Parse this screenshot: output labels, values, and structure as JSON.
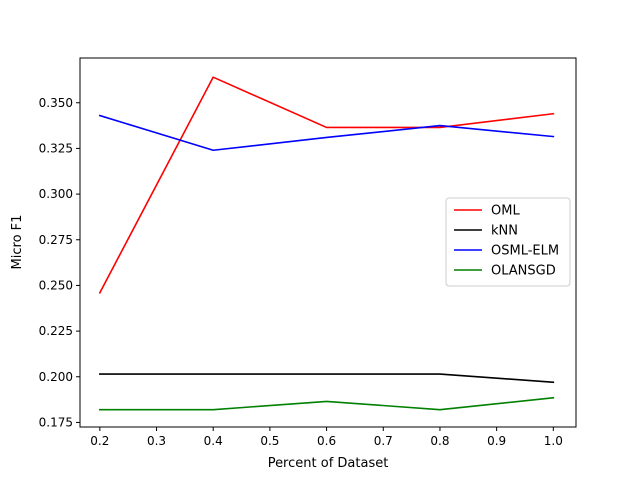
{
  "chart_data": {
    "type": "line",
    "title": "",
    "xlabel": "Percent of Dataset",
    "ylabel": "Micro F1",
    "x": [
      0.2,
      0.4,
      0.6,
      0.8,
      1.0
    ],
    "xlim": [
      0.165,
      1.04
    ],
    "ylim": [
      0.1725,
      0.3745
    ],
    "xticks": [
      0.2,
      0.3,
      0.4,
      0.5,
      0.6,
      0.7,
      0.8,
      0.9,
      1.0
    ],
    "xtick_labels": [
      "0.2",
      "0.3",
      "0.4",
      "0.5",
      "0.6",
      "0.7",
      "0.8",
      "0.9",
      "1.0"
    ],
    "yticks": [
      0.175,
      0.2,
      0.225,
      0.25,
      0.275,
      0.3,
      0.325,
      0.35
    ],
    "ytick_labels": [
      "0.175",
      "0.200",
      "0.225",
      "0.250",
      "0.275",
      "0.300",
      "0.325",
      "0.350"
    ],
    "grid": false,
    "legend_position": "center-right",
    "series": [
      {
        "name": "OML",
        "color": "#ff0000",
        "values": [
          0.246,
          0.364,
          0.3365,
          0.3365,
          0.344
        ]
      },
      {
        "name": "kNN",
        "color": "#000000",
        "values": [
          0.2015,
          0.2015,
          0.2015,
          0.2015,
          0.197
        ]
      },
      {
        "name": "OSML-ELM",
        "color": "#0000ff",
        "values": [
          0.343,
          0.324,
          0.331,
          0.3375,
          0.3315
        ]
      },
      {
        "name": "OLANSGD",
        "color": "#008000",
        "values": [
          0.182,
          0.182,
          0.1865,
          0.182,
          0.1885
        ]
      }
    ]
  }
}
